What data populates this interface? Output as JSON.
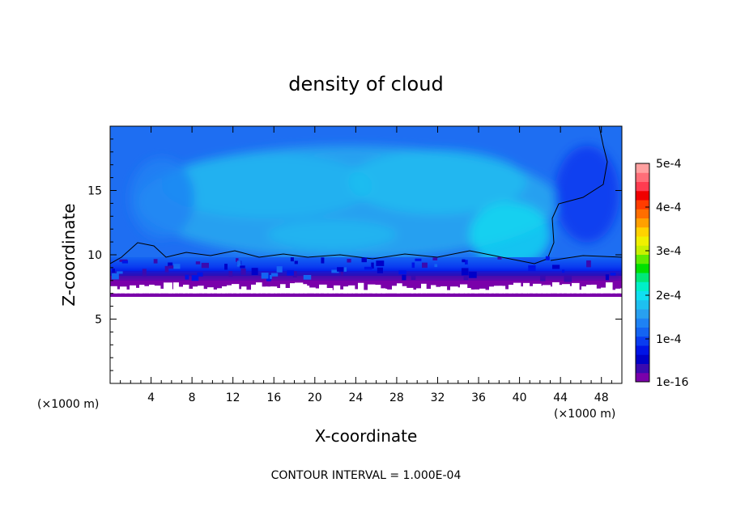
{
  "chart_data": {
    "type": "heatmap",
    "title": "density of cloud",
    "xlabel": "X-coordinate",
    "ylabel": "Z-coordinate",
    "x_unit_left": "(×1000 m)",
    "x_unit_right": "(×1000 m)",
    "xlim": [
      0,
      50
    ],
    "ylim": [
      0,
      20
    ],
    "x_ticks": [
      4,
      8,
      12,
      16,
      20,
      24,
      28,
      32,
      36,
      40,
      44,
      48
    ],
    "x_tick_labels": [
      "4",
      "8",
      "12",
      "16",
      "20",
      "24",
      "28",
      "32",
      "36",
      "40",
      "44",
      "48"
    ],
    "y_ticks": [
      5,
      10,
      15
    ],
    "y_tick_labels": [
      "5",
      "10",
      "15"
    ],
    "footer": "CONTOUR INTERVAL = 1.000E-04",
    "colorbar": {
      "labels": [
        "5e-4",
        "4e-4",
        "3e-4",
        "2e-4",
        "1e-4",
        "1e-16"
      ],
      "colors": [
        "#7a00aa",
        "#3a0ab0",
        "#0000c8",
        "#0014e6",
        "#0a3cf0",
        "#1464f2",
        "#1e82f4",
        "#28a0f0",
        "#1ec0f0",
        "#10e0f0",
        "#00f0c8",
        "#00e878",
        "#00e000",
        "#60ec00",
        "#c8f000",
        "#f0f000",
        "#ffd200",
        "#ffa000",
        "#ff6e00",
        "#ff3c00",
        "#f00000",
        "#ff3c50",
        "#ff6e78",
        "#ffa0a0"
      ]
    },
    "cloud_base_z": 7,
    "contour_level": 0.0001
  }
}
